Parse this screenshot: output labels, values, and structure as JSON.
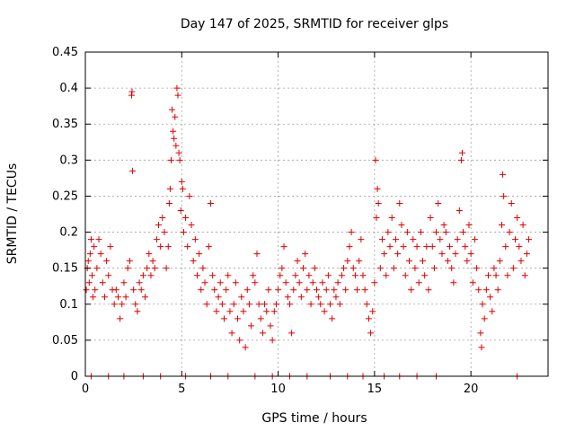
{
  "chart_data": {
    "type": "scatter",
    "title": "Day 147 of 2025, SRMTID for receiver glps",
    "xlabel": "GPS time / hours",
    "ylabel": "SRMTID / TECUs",
    "xlim": [
      0,
      24
    ],
    "ylim": [
      0,
      0.45
    ],
    "grid": true,
    "legend": "none",
    "marker": "plus",
    "color": "#e00000",
    "x_ticks": [
      {
        "value": 0,
        "label": "0"
      },
      {
        "value": 5,
        "label": "5"
      },
      {
        "value": 10,
        "label": "10"
      },
      {
        "value": 15,
        "label": "15"
      },
      {
        "value": 20,
        "label": "20"
      }
    ],
    "y_ticks": [
      {
        "value": 0,
        "label": "0"
      },
      {
        "value": 0.05,
        "label": "0.05"
      },
      {
        "value": 0.1,
        "label": "0.1"
      },
      {
        "value": 0.15,
        "label": "0.15"
      },
      {
        "value": 0.2,
        "label": "0.2"
      },
      {
        "value": 0.25,
        "label": "0.25"
      },
      {
        "value": 0.3,
        "label": "0.3"
      },
      {
        "value": 0.35,
        "label": "0.35"
      },
      {
        "value": 0.4,
        "label": "0.4"
      },
      {
        "value": 0.45,
        "label": "0.45"
      }
    ],
    "series": [
      {
        "name": "SRMTID",
        "points": [
          [
            0.05,
            0.12
          ],
          [
            0.1,
            0.15
          ],
          [
            0.15,
            0.16
          ],
          [
            0.2,
            0.13
          ],
          [
            0.25,
            0.17
          ],
          [
            0.3,
            0.19
          ],
          [
            0.35,
            0.14
          ],
          [
            0.4,
            0.11
          ],
          [
            0.45,
            0.18
          ],
          [
            0.5,
            0.12
          ],
          [
            0.6,
            0.15
          ],
          [
            0.7,
            0.19
          ],
          [
            0.8,
            0.17
          ],
          [
            0.9,
            0.13
          ],
          [
            1.0,
            0.11
          ],
          [
            1.1,
            0.16
          ],
          [
            1.2,
            0.14
          ],
          [
            1.3,
            0.18
          ],
          [
            1.4,
            0.12
          ],
          [
            1.5,
            0.1
          ],
          [
            1.6,
            0.12
          ],
          [
            1.7,
            0.11
          ],
          [
            1.8,
            0.08
          ],
          [
            1.9,
            0.1
          ],
          [
            2.0,
            0.13
          ],
          [
            2.1,
            0.11
          ],
          [
            2.2,
            0.15
          ],
          [
            2.3,
            0.16
          ],
          [
            2.4,
            0.39
          ],
          [
            2.42,
            0.395
          ],
          [
            2.45,
            0.285
          ],
          [
            2.5,
            0.12
          ],
          [
            2.6,
            0.1
          ],
          [
            2.7,
            0.09
          ],
          [
            2.8,
            0.13
          ],
          [
            2.9,
            0.12
          ],
          [
            3.0,
            0.14
          ],
          [
            3.1,
            0.11
          ],
          [
            3.2,
            0.15
          ],
          [
            3.3,
            0.17
          ],
          [
            3.4,
            0.14
          ],
          [
            3.5,
            0.16
          ],
          [
            3.6,
            0.15
          ],
          [
            3.7,
            0.19
          ],
          [
            3.8,
            0.21
          ],
          [
            3.9,
            0.18
          ],
          [
            4.0,
            0.22
          ],
          [
            4.1,
            0.2
          ],
          [
            4.2,
            0.15
          ],
          [
            4.3,
            0.18
          ],
          [
            4.35,
            0.24
          ],
          [
            4.4,
            0.26
          ],
          [
            4.45,
            0.3
          ],
          [
            4.5,
            0.37
          ],
          [
            4.55,
            0.34
          ],
          [
            4.6,
            0.33
          ],
          [
            4.65,
            0.36
          ],
          [
            4.7,
            0.32
          ],
          [
            4.75,
            0.4
          ],
          [
            4.8,
            0.39
          ],
          [
            4.85,
            0.31
          ],
          [
            4.9,
            0.3
          ],
          [
            4.95,
            0.23
          ],
          [
            5.0,
            0.27
          ],
          [
            5.05,
            0.26
          ],
          [
            5.1,
            0.2
          ],
          [
            5.2,
            0.22
          ],
          [
            5.3,
            0.18
          ],
          [
            5.4,
            0.25
          ],
          [
            5.5,
            0.21
          ],
          [
            5.6,
            0.16
          ],
          [
            5.7,
            0.19
          ],
          [
            5.8,
            0.14
          ],
          [
            5.9,
            0.17
          ],
          [
            6.0,
            0.12
          ],
          [
            6.1,
            0.15
          ],
          [
            6.2,
            0.13
          ],
          [
            6.3,
            0.1
          ],
          [
            6.4,
            0.18
          ],
          [
            6.5,
            0.24
          ],
          [
            6.6,
            0.14
          ],
          [
            6.7,
            0.12
          ],
          [
            6.8,
            0.09
          ],
          [
            6.9,
            0.11
          ],
          [
            7.0,
            0.13
          ],
          [
            7.1,
            0.1
          ],
          [
            7.2,
            0.08
          ],
          [
            7.3,
            0.12
          ],
          [
            7.4,
            0.14
          ],
          [
            7.5,
            0.09
          ],
          [
            7.6,
            0.06
          ],
          [
            7.7,
            0.1
          ],
          [
            7.8,
            0.13
          ],
          [
            7.9,
            0.08
          ],
          [
            8.0,
            0.05
          ],
          [
            8.1,
            0.11
          ],
          [
            8.2,
            0.09
          ],
          [
            8.3,
            0.04
          ],
          [
            8.4,
            0.12
          ],
          [
            8.5,
            0.1
          ],
          [
            8.6,
            0.07
          ],
          [
            8.7,
            0.14
          ],
          [
            8.8,
            0.13
          ],
          [
            8.9,
            0.17
          ],
          [
            9.0,
            0.1
          ],
          [
            9.1,
            0.08
          ],
          [
            9.2,
            0.06
          ],
          [
            9.3,
            0.1
          ],
          [
            9.4,
            0.09
          ],
          [
            9.5,
            0.12
          ],
          [
            9.6,
            0.07
          ],
          [
            9.7,
            0.05
          ],
          [
            9.8,
            0.09
          ],
          [
            9.9,
            0.1
          ],
          [
            10.0,
            0.12
          ],
          [
            10.1,
            0.14
          ],
          [
            10.2,
            0.15
          ],
          [
            10.3,
            0.18
          ],
          [
            10.4,
            0.13
          ],
          [
            10.5,
            0.11
          ],
          [
            10.6,
            0.1
          ],
          [
            10.7,
            0.06
          ],
          [
            10.8,
            0.12
          ],
          [
            10.9,
            0.14
          ],
          [
            11.0,
            0.16
          ],
          [
            11.1,
            0.13
          ],
          [
            11.2,
            0.11
          ],
          [
            11.3,
            0.15
          ],
          [
            11.4,
            0.17
          ],
          [
            11.5,
            0.12
          ],
          [
            11.6,
            0.14
          ],
          [
            11.7,
            0.1
          ],
          [
            11.8,
            0.13
          ],
          [
            11.9,
            0.15
          ],
          [
            12.0,
            0.12
          ],
          [
            12.1,
            0.11
          ],
          [
            12.2,
            0.1
          ],
          [
            12.3,
            0.13
          ],
          [
            12.4,
            0.09
          ],
          [
            12.5,
            0.12
          ],
          [
            12.6,
            0.14
          ],
          [
            12.7,
            0.1
          ],
          [
            12.8,
            0.08
          ],
          [
            12.9,
            0.12
          ],
          [
            13.0,
            0.11
          ],
          [
            13.1,
            0.13
          ],
          [
            13.2,
            0.1
          ],
          [
            13.3,
            0.14
          ],
          [
            13.4,
            0.15
          ],
          [
            13.5,
            0.12
          ],
          [
            13.6,
            0.16
          ],
          [
            13.7,
            0.18
          ],
          [
            13.8,
            0.2
          ],
          [
            13.9,
            0.15
          ],
          [
            14.0,
            0.14
          ],
          [
            14.1,
            0.12
          ],
          [
            14.2,
            0.16
          ],
          [
            14.3,
            0.19
          ],
          [
            14.4,
            0.14
          ],
          [
            14.5,
            0.12
          ],
          [
            14.6,
            0.1
          ],
          [
            14.7,
            0.08
          ],
          [
            14.8,
            0.06
          ],
          [
            14.9,
            0.09
          ],
          [
            15.0,
            0.13
          ],
          [
            15.05,
            0.3
          ],
          [
            15.1,
            0.22
          ],
          [
            15.15,
            0.26
          ],
          [
            15.2,
            0.24
          ],
          [
            15.3,
            0.15
          ],
          [
            15.4,
            0.19
          ],
          [
            15.5,
            0.17
          ],
          [
            15.6,
            0.14
          ],
          [
            15.7,
            0.2
          ],
          [
            15.8,
            0.18
          ],
          [
            15.9,
            0.22
          ],
          [
            16.0,
            0.15
          ],
          [
            16.1,
            0.19
          ],
          [
            16.2,
            0.17
          ],
          [
            16.3,
            0.24
          ],
          [
            16.4,
            0.21
          ],
          [
            16.5,
            0.18
          ],
          [
            16.6,
            0.14
          ],
          [
            16.7,
            0.2
          ],
          [
            16.8,
            0.16
          ],
          [
            16.9,
            0.12
          ],
          [
            17.0,
            0.19
          ],
          [
            17.1,
            0.15
          ],
          [
            17.2,
            0.18
          ],
          [
            17.3,
            0.13
          ],
          [
            17.4,
            0.2
          ],
          [
            17.5,
            0.16
          ],
          [
            17.6,
            0.14
          ],
          [
            17.7,
            0.18
          ],
          [
            17.8,
            0.12
          ],
          [
            17.9,
            0.22
          ],
          [
            18.0,
            0.18
          ],
          [
            18.1,
            0.15
          ],
          [
            18.2,
            0.2
          ],
          [
            18.3,
            0.24
          ],
          [
            18.4,
            0.19
          ],
          [
            18.5,
            0.17
          ],
          [
            18.6,
            0.21
          ],
          [
            18.7,
            0.2
          ],
          [
            18.8,
            0.16
          ],
          [
            18.9,
            0.18
          ],
          [
            19.0,
            0.15
          ],
          [
            19.1,
            0.13
          ],
          [
            19.2,
            0.17
          ],
          [
            19.3,
            0.19
          ],
          [
            19.4,
            0.23
          ],
          [
            19.5,
            0.3
          ],
          [
            19.55,
            0.31
          ],
          [
            19.6,
            0.2
          ],
          [
            19.7,
            0.18
          ],
          [
            19.8,
            0.16
          ],
          [
            19.9,
            0.21
          ],
          [
            20.0,
            0.17
          ],
          [
            20.1,
            0.13
          ],
          [
            20.2,
            0.19
          ],
          [
            20.3,
            0.15
          ],
          [
            20.4,
            0.12
          ],
          [
            20.5,
            0.06
          ],
          [
            20.55,
            0.04
          ],
          [
            20.6,
            0.1
          ],
          [
            20.7,
            0.08
          ],
          [
            20.8,
            0.12
          ],
          [
            20.9,
            0.14
          ],
          [
            21.0,
            0.11
          ],
          [
            21.1,
            0.09
          ],
          [
            21.2,
            0.15
          ],
          [
            21.3,
            0.14
          ],
          [
            21.4,
            0.12
          ],
          [
            21.5,
            0.16
          ],
          [
            21.6,
            0.21
          ],
          [
            21.65,
            0.28
          ],
          [
            21.7,
            0.25
          ],
          [
            21.8,
            0.18
          ],
          [
            21.9,
            0.14
          ],
          [
            22.0,
            0.2
          ],
          [
            22.1,
            0.24
          ],
          [
            22.2,
            0.15
          ],
          [
            22.3,
            0.19
          ],
          [
            22.4,
            0.22
          ],
          [
            22.5,
            0.18
          ],
          [
            22.6,
            0.16
          ],
          [
            22.7,
            0.21
          ],
          [
            22.8,
            0.14
          ],
          [
            22.9,
            0.17
          ],
          [
            23.0,
            0.19
          ],
          [
            0.3,
            0
          ],
          [
            1.2,
            0
          ],
          [
            2.0,
            0
          ],
          [
            3.0,
            0
          ],
          [
            3.9,
            0
          ],
          [
            5.2,
            0
          ],
          [
            6.5,
            0
          ],
          [
            7.4,
            0
          ],
          [
            8.8,
            0
          ],
          [
            9.7,
            0
          ],
          [
            10.6,
            0
          ],
          [
            11.5,
            0
          ],
          [
            12.7,
            0
          ],
          [
            13.6,
            0
          ],
          [
            14.4,
            0
          ],
          [
            15.5,
            0
          ],
          [
            16.3,
            0
          ],
          [
            17.2,
            0
          ],
          [
            18.2,
            0
          ],
          [
            22.4,
            0
          ]
        ]
      }
    ]
  }
}
